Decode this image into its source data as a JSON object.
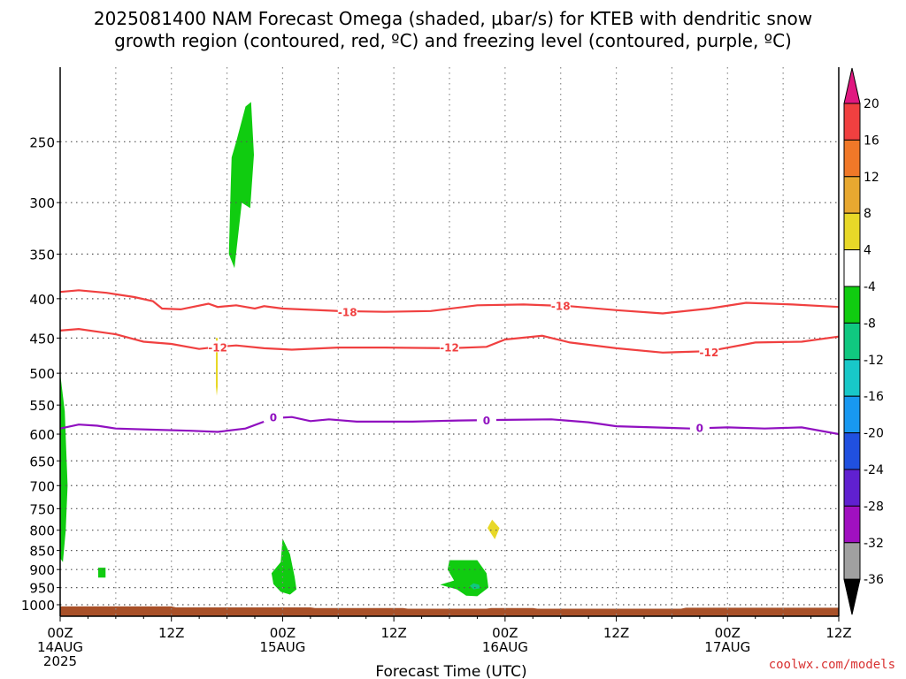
{
  "title": {
    "line1": "2025081400 NAM Forecast Omega (shaded, μbar/s) for KTEB with dendritic snow",
    "line2": "growth region (contoured, red, ºC) and freezing level (contoured, purple, ºC)"
  },
  "credit": "coolwx.com/models",
  "credit_color": "#d83030",
  "chart_data": {
    "type": "heatmap",
    "title": "2025081400 NAM Forecast Omega (shaded, μbar/s) for KTEB with dendritic snow growth region (contoured, red, ºC) and freezing level (contoured, purple, ºC)",
    "xlabel": "Forecast Time (UTC)",
    "ylabel": "",
    "x_unit": "forecast hour",
    "xlim": [
      0,
      84
    ],
    "y_scale": "log-pressure (inverted)",
    "ylim": [
      1035,
      200
    ],
    "grid": true,
    "x_ticks": [
      {
        "hour": 0,
        "time": "00Z",
        "date": "14AUG",
        "year": "2025"
      },
      {
        "hour": 12,
        "time": "12Z",
        "date": "",
        "year": ""
      },
      {
        "hour": 24,
        "time": "00Z",
        "date": "15AUG",
        "year": ""
      },
      {
        "hour": 36,
        "time": "12Z",
        "date": "",
        "year": ""
      },
      {
        "hour": 48,
        "time": "00Z",
        "date": "16AUG",
        "year": ""
      },
      {
        "hour": 60,
        "time": "12Z",
        "date": "",
        "year": ""
      },
      {
        "hour": 72,
        "time": "00Z",
        "date": "17AUG",
        "year": ""
      },
      {
        "hour": 84,
        "time": "12Z",
        "date": "",
        "year": ""
      }
    ],
    "y_ticks": [
      250,
      300,
      350,
      400,
      450,
      500,
      550,
      600,
      650,
      700,
      750,
      800,
      850,
      900,
      950,
      1000
    ],
    "colorbar": {
      "levels": [
        20,
        16,
        12,
        8,
        4,
        -4,
        -8,
        -12,
        -16,
        -20,
        -24,
        -28,
        -32,
        -36
      ],
      "bins": [
        {
          "range": "> 20",
          "color": "#e01880"
        },
        {
          "range": "16 to 20",
          "color": "#f04040"
        },
        {
          "range": "12 to 16",
          "color": "#f07828"
        },
        {
          "range": "8 to 12",
          "color": "#e8a830"
        },
        {
          "range": "4 to 8",
          "color": "#e8d828"
        },
        {
          "range": "-4 to 4",
          "color": "#ffffff"
        },
        {
          "range": "-8 to -4",
          "color": "#10cc10"
        },
        {
          "range": "-12 to -8",
          "color": "#10c880"
        },
        {
          "range": "-16 to -12",
          "color": "#18c8c8"
        },
        {
          "range": "-20 to -16",
          "color": "#1898f0"
        },
        {
          "range": "-24 to -20",
          "color": "#2050e0"
        },
        {
          "range": "-28 to -24",
          "color": "#6020d0"
        },
        {
          "range": "-32 to -28",
          "color": "#a010c0"
        },
        {
          "range": "-36 to -32",
          "color": "#a0a0a0"
        },
        {
          "range": "< -36",
          "color": "#000000"
        }
      ]
    },
    "contours": [
      {
        "name": "-18",
        "color": "#f04040",
        "points": [
          [
            0,
            392
          ],
          [
            2,
            390
          ],
          [
            5,
            393
          ],
          [
            8,
            398
          ],
          [
            10,
            403
          ],
          [
            11,
            412
          ],
          [
            13,
            413
          ],
          [
            16,
            406
          ],
          [
            17,
            410
          ],
          [
            19,
            408
          ],
          [
            21,
            412
          ],
          [
            22,
            409
          ],
          [
            24,
            412
          ],
          [
            30,
            415
          ],
          [
            35,
            416
          ],
          [
            40,
            415
          ],
          [
            45,
            408
          ],
          [
            50,
            407
          ],
          [
            55,
            409
          ],
          [
            60,
            414
          ],
          [
            65,
            418
          ],
          [
            70,
            412
          ],
          [
            74,
            405
          ],
          [
            79,
            407
          ],
          [
            84,
            410
          ]
        ],
        "labels": [
          [
            31,
            416
          ],
          [
            54,
            408
          ]
        ]
      },
      {
        "name": "-12",
        "color": "#f04040",
        "points": [
          [
            0,
            440
          ],
          [
            2,
            438
          ],
          [
            6,
            445
          ],
          [
            9,
            455
          ],
          [
            12,
            458
          ],
          [
            15,
            465
          ],
          [
            17,
            462
          ],
          [
            19,
            460
          ],
          [
            22,
            464
          ],
          [
            25,
            466
          ],
          [
            30,
            463
          ],
          [
            35,
            463
          ],
          [
            42,
            464
          ],
          [
            46,
            462
          ],
          [
            48,
            452
          ],
          [
            52,
            447
          ],
          [
            55,
            456
          ],
          [
            60,
            464
          ],
          [
            65,
            470
          ],
          [
            70,
            468
          ],
          [
            75,
            456
          ],
          [
            80,
            455
          ],
          [
            84,
            448
          ]
        ],
        "labels": [
          [
            17,
            462
          ],
          [
            42,
            462
          ],
          [
            70,
            469
          ]
        ]
      },
      {
        "name": "0",
        "color": "#9010c0",
        "points": [
          [
            0,
            590
          ],
          [
            2,
            583
          ],
          [
            4,
            585
          ],
          [
            6,
            590
          ],
          [
            10,
            592
          ],
          [
            14,
            594
          ],
          [
            17,
            596
          ],
          [
            20,
            590
          ],
          [
            23,
            572
          ],
          [
            25,
            570
          ],
          [
            27,
            577
          ],
          [
            29,
            574
          ],
          [
            32,
            578
          ],
          [
            38,
            578
          ],
          [
            43,
            576
          ],
          [
            48,
            575
          ],
          [
            53,
            574
          ],
          [
            57,
            579
          ],
          [
            60,
            586
          ],
          [
            64,
            588
          ],
          [
            68,
            590
          ],
          [
            72,
            588
          ],
          [
            76,
            590
          ],
          [
            80,
            588
          ],
          [
            84,
            600
          ]
        ],
        "labels": [
          [
            23,
            570
          ],
          [
            46,
            575
          ],
          [
            69,
            588
          ]
        ]
      }
    ],
    "shaded_regions": [
      {
        "bin": "-8 to -4",
        "points": [
          [
            20,
            225
          ],
          [
            20.6,
            222
          ],
          [
            20.9,
            260
          ],
          [
            20.5,
            305
          ],
          [
            19.6,
            300
          ],
          [
            18.8,
            365
          ],
          [
            18.2,
            350
          ],
          [
            18.4,
            285
          ],
          [
            18.5,
            262
          ],
          [
            19.0,
            250
          ]
        ]
      },
      {
        "bin": "-8 to -4",
        "points": [
          [
            0,
            500
          ],
          [
            0.5,
            560
          ],
          [
            0.8,
            700
          ],
          [
            0.6,
            800
          ],
          [
            0.3,
            880
          ],
          [
            0,
            870
          ]
        ]
      },
      {
        "bin": "-8 to -4",
        "points": [
          [
            4.1,
            895
          ],
          [
            4.9,
            895
          ],
          [
            4.9,
            922
          ],
          [
            4.1,
            922
          ]
        ]
      },
      {
        "bin": "-8 to -4",
        "points": [
          [
            24,
            820
          ],
          [
            24.8,
            860
          ],
          [
            25.3,
            920
          ],
          [
            25.5,
            955
          ],
          [
            24.8,
            970
          ],
          [
            23.8,
            962
          ],
          [
            23.0,
            940
          ],
          [
            22.8,
            910
          ],
          [
            23.8,
            880
          ]
        ]
      },
      {
        "bin": "-8 to -4",
        "points": [
          [
            42.0,
            875
          ],
          [
            45.0,
            875
          ],
          [
            46.0,
            910
          ],
          [
            46.2,
            950
          ],
          [
            45.0,
            975
          ],
          [
            43.8,
            973
          ],
          [
            42.8,
            955
          ],
          [
            41.0,
            942
          ],
          [
            42.5,
            930
          ],
          [
            41.8,
            900
          ]
        ]
      },
      {
        "bin": "-12 to -8",
        "points": [
          [
            44.6,
            938
          ],
          [
            45.2,
            942
          ],
          [
            45.3,
            952
          ],
          [
            44.6,
            955
          ],
          [
            44.2,
            945
          ]
        ]
      },
      {
        "bin": "4 to 8",
        "points": [
          [
            16.8,
            450
          ],
          [
            17.0,
            450
          ],
          [
            17.0,
            520
          ],
          [
            16.9,
            535
          ],
          [
            16.8,
            520
          ]
        ]
      },
      {
        "bin": "4 to 8",
        "points": [
          [
            46.6,
            775
          ],
          [
            47.4,
            795
          ],
          [
            46.9,
            822
          ],
          [
            46.1,
            795
          ]
        ]
      }
    ],
    "terrain": {
      "color": "#a85028",
      "top": [
        [
          0,
          1005
        ],
        [
          12,
          1005
        ],
        [
          12.5,
          1008
        ],
        [
          27,
          1008
        ],
        [
          27.5,
          1010
        ],
        [
          37,
          1010
        ],
        [
          37.5,
          1012
        ],
        [
          46,
          1012
        ],
        [
          46.5,
          1010
        ],
        [
          51,
          1010
        ],
        [
          51.5,
          1012
        ],
        [
          67,
          1012
        ],
        [
          67.5,
          1009
        ],
        [
          84,
          1009
        ]
      ]
    }
  }
}
